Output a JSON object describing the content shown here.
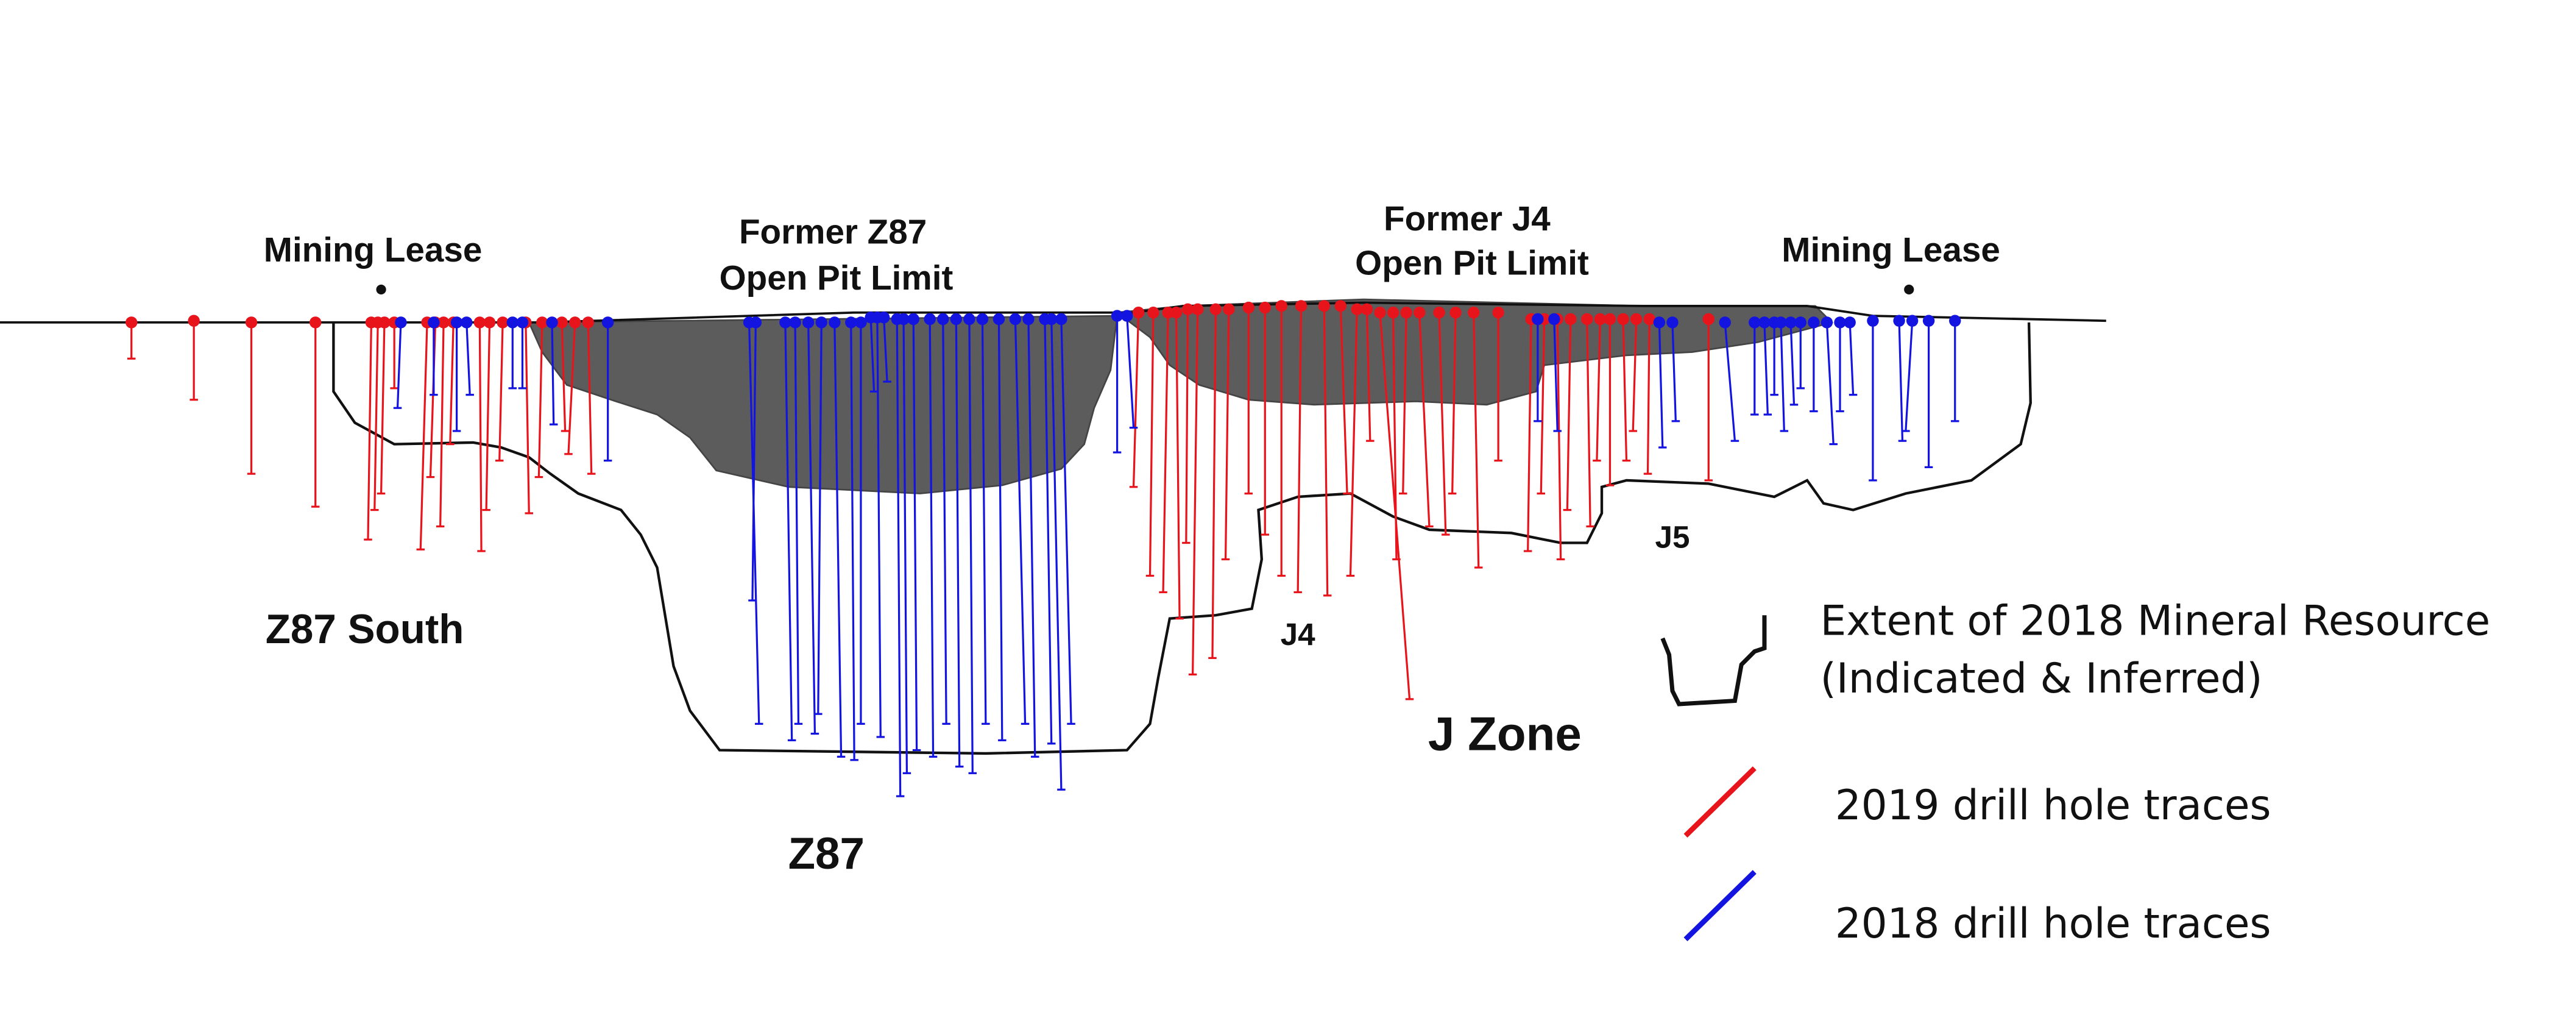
{
  "labels": {
    "mining_lease_left": "Mining Lease",
    "mining_lease_right": "Mining Lease",
    "former_z87_line1": "Former Z87",
    "former_z87_line2": "Open Pit Limit",
    "former_j4_line1": "Former J4",
    "former_j4_line2": "Open Pit Limit",
    "z87_south": "Z87 South",
    "z87": "Z87",
    "j4": "J4",
    "j5": "J5",
    "j_zone": "J Zone"
  },
  "legend": {
    "resource_line1": "Extent of 2018 Mineral Resource",
    "resource_line2": "(Indicated & Inferred)",
    "red_traces": "2019 drill hole traces",
    "blue_traces": "2018 drill hole traces"
  },
  "colors": {
    "drill_2019": "#e8141c",
    "drill_2018": "#1414e0",
    "pit_fill": "#5c5c5c",
    "resource_outline": "#111111",
    "surface": "#111111"
  }
}
